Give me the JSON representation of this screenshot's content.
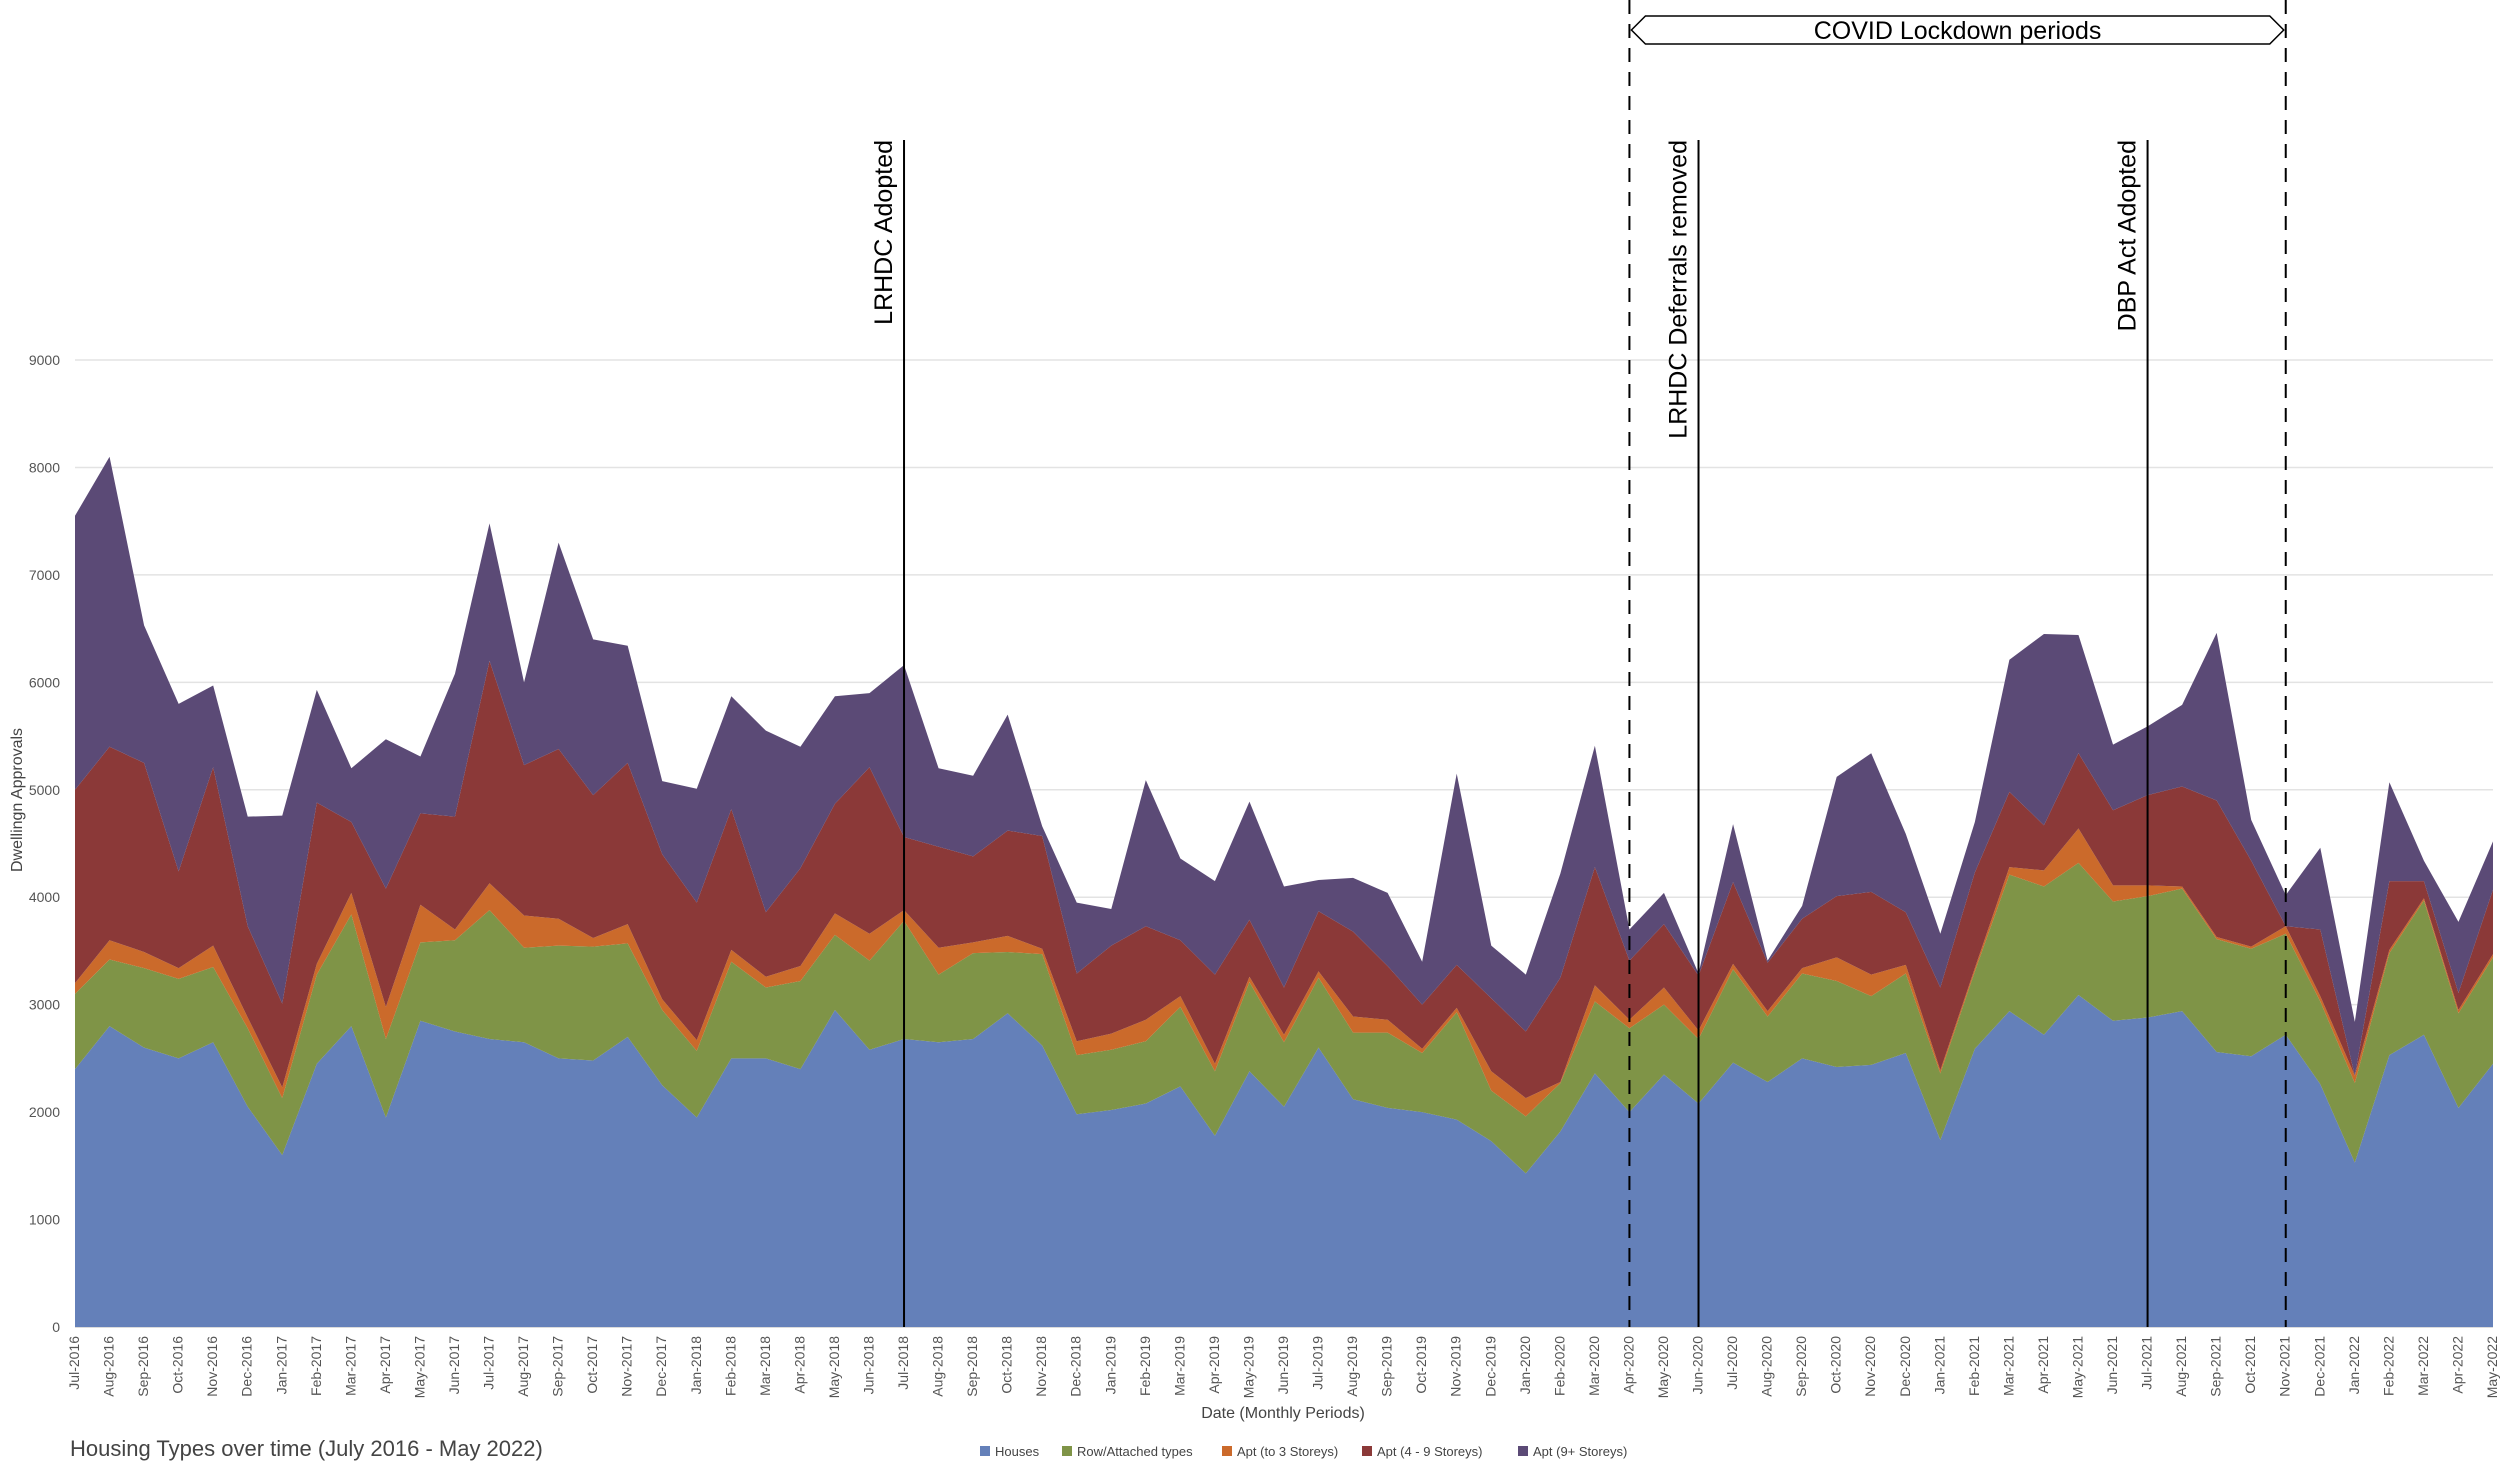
{
  "chart_data": {
    "type": "area",
    "stacked": true,
    "title": "Housing Types over time (July 2016 - May 2022)",
    "xlabel": "Date (Monthly Periods)",
    "ylabel": "Dwellingn Approvals",
    "ylim": [
      0,
      9000
    ],
    "yticks": [
      0,
      1000,
      2000,
      3000,
      4000,
      5000,
      6000,
      7000,
      8000,
      9000
    ],
    "grid": true,
    "legend_position": "bottom-center",
    "categories": [
      "Jul-2016",
      "Aug-2016",
      "Sep-2016",
      "Oct-2016",
      "Nov-2016",
      "Dec-2016",
      "Jan-2017",
      "Feb-2017",
      "Mar-2017",
      "Apr-2017",
      "May-2017",
      "Jun-2017",
      "Jul-2017",
      "Aug-2017",
      "Sep-2017",
      "Oct-2017",
      "Nov-2017",
      "Dec-2017",
      "Jan-2018",
      "Feb-2018",
      "Mar-2018",
      "Apr-2018",
      "May-2018",
      "Jun-2018",
      "Jul-2018",
      "Aug-2018",
      "Sep-2018",
      "Oct-2018",
      "Nov-2018",
      "Dec-2018",
      "Jan-2019",
      "Feb-2019",
      "Mar-2019",
      "Apr-2019",
      "May-2019",
      "Jun-2019",
      "Jul-2019",
      "Aug-2019",
      "Sep-2019",
      "Oct-2019",
      "Nov-2019",
      "Dec-2019",
      "Jan-2020",
      "Feb-2020",
      "Mar-2020",
      "Apr-2020",
      "May-2020",
      "Jun-2020",
      "Jul-2020",
      "Aug-2020",
      "Sep-2020",
      "Oct-2020",
      "Nov-2020",
      "Dec-2020",
      "Jan-2021",
      "Feb-2021",
      "Mar-2021",
      "Apr-2021",
      "May-2021",
      "Jun-2021",
      "Jul-2021",
      "Aug-2021",
      "Sep-2021",
      "Oct-2021",
      "Nov-2021",
      "Dec-2021",
      "Jan-2022",
      "Feb-2022",
      "Mar-2022",
      "Apr-2022",
      "May-2022"
    ],
    "series": [
      {
        "name": "Houses",
        "color": "#6480B9",
        "values": [
          2400,
          2800,
          2600,
          2500,
          2650,
          2050,
          1600,
          2450,
          2800,
          1950,
          2850,
          2750,
          2680,
          2650,
          2500,
          2480,
          2700,
          2250,
          1950,
          2500,
          2500,
          2400,
          2950,
          2580,
          2680,
          2650,
          2680,
          2920,
          2620,
          1980,
          2020,
          2080,
          2240,
          1780,
          2380,
          2050,
          2600,
          2120,
          2040,
          2000,
          1930,
          1730,
          1430,
          1820,
          2360,
          2000,
          2350,
          2080,
          2460,
          2280,
          2500,
          2420,
          2440,
          2550,
          1740,
          2590,
          2940,
          2720,
          3090,
          2850,
          2880,
          2940,
          2560,
          2520,
          2720,
          2260,
          1530,
          2530,
          2720,
          2040,
          2450
        ]
      },
      {
        "name": "Row/Attached types",
        "color": "#7F9447",
        "values": [
          700,
          620,
          740,
          740,
          700,
          730,
          530,
          830,
          1040,
          730,
          730,
          850,
          1200,
          880,
          1050,
          1060,
          870,
          700,
          620,
          900,
          660,
          820,
          700,
          830,
          1100,
          630,
          800,
          570,
          850,
          550,
          560,
          580,
          740,
          600,
          830,
          600,
          650,
          620,
          700,
          550,
          1000,
          470,
          530,
          450,
          670,
          780,
          650,
          600,
          870,
          610,
          790,
          800,
          640,
          740,
          620,
          720,
          1270,
          1380,
          1230,
          1110,
          1130,
          1140,
          1050,
          1000,
          940,
          770,
          740,
          950,
          1250,
          880,
          990
        ]
      },
      {
        "name": "Apt (to 3 Storeys)",
        "color": "#CB6A2B",
        "values": [
          100,
          180,
          150,
          100,
          200,
          100,
          100,
          100,
          200,
          300,
          350,
          100,
          250,
          300,
          250,
          80,
          180,
          100,
          100,
          110,
          100,
          140,
          200,
          250,
          100,
          250,
          100,
          150,
          50,
          130,
          150,
          200,
          100,
          70,
          50,
          70,
          60,
          150,
          120,
          40,
          40,
          180,
          170,
          10,
          150,
          80,
          160,
          80,
          50,
          50,
          50,
          220,
          200,
          80,
          30,
          30,
          70,
          150,
          320,
          150,
          100,
          20,
          20,
          20,
          70,
          50,
          70,
          30,
          20,
          30,
          30
        ]
      },
      {
        "name": "Apt (4 - 9 Storeys)",
        "color": "#8B3938",
        "values": [
          1800,
          1800,
          1760,
          900,
          1660,
          850,
          780,
          1500,
          660,
          1100,
          850,
          1050,
          2070,
          1400,
          1580,
          1330,
          1500,
          1350,
          1280,
          1310,
          600,
          910,
          1020,
          1550,
          680,
          940,
          800,
          980,
          1050,
          630,
          820,
          870,
          520,
          830,
          530,
          440,
          560,
          790,
          500,
          410,
          400,
          680,
          620,
          970,
          1100,
          550,
          590,
          510,
          760,
          450,
          460,
          570,
          770,
          490,
          770,
          890,
          700,
          420,
          700,
          700,
          840,
          930,
          1270,
          800,
          0,
          620,
          0,
          640,
          160,
          160,
          600
        ]
      },
      {
        "name": "Apt (9+ Storeys)",
        "color": "#5B4A76",
        "values": [
          2550,
          2700,
          1280,
          1560,
          760,
          1020,
          1750,
          1050,
          500,
          1390,
          530,
          1330,
          1280,
          770,
          1920,
          1450,
          1090,
          680,
          1060,
          1050,
          1690,
          1130,
          1000,
          690,
          1600,
          730,
          750,
          1080,
          90,
          660,
          340,
          1360,
          760,
          870,
          1100,
          940,
          290,
          500,
          680,
          400,
          1780,
          490,
          530,
          970,
          1130,
          290,
          290,
          20,
          540,
          20,
          120,
          1110,
          1290,
          730,
          500,
          470,
          1230,
          1780,
          1100,
          610,
          640,
          760,
          1560,
          380,
          290,
          760,
          500,
          920,
          190,
          660,
          450
        ]
      }
    ],
    "events": [
      {
        "label": "LRHDC Adopted",
        "at": "Jul-2018",
        "style": "solid"
      },
      {
        "label": "LRHDC Deferrals removed",
        "at": "Jun-2020",
        "style": "solid"
      },
      {
        "label": "DBP Act Adopted",
        "at": "Jul-2021",
        "style": "solid"
      }
    ],
    "covid": {
      "label": "COVID Lockdown periods",
      "start": "Apr-2020",
      "end": "Nov-2021",
      "style": "dashed"
    }
  }
}
